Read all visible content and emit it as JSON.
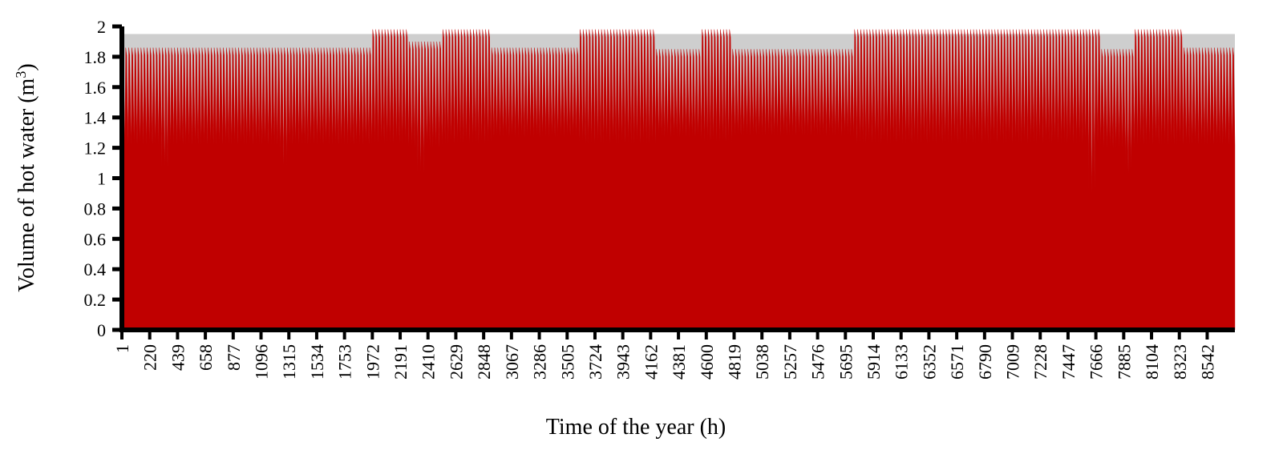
{
  "chart_data": {
    "type": "area",
    "xlabel": "Time of the year (h)",
    "ylabel": "Volume of hot water (m³)",
    "ylabel_main": "Volume of hot water (m",
    "ylabel_sup": "3",
    "ylabel_end": ")",
    "ylim": [
      0,
      2
    ],
    "xlim": [
      1,
      8760
    ],
    "yticks": [
      0,
      0.2,
      0.4,
      0.6,
      0.8,
      1,
      1.2,
      1.4,
      1.6,
      1.8,
      2
    ],
    "ytick_labels": [
      "0",
      "0.2",
      "0.4",
      "0.6",
      "0.8",
      "1",
      "1.2",
      "1.4",
      "1.6",
      "1.8",
      "2"
    ],
    "xticks": [
      1,
      220,
      439,
      658,
      877,
      1096,
      1315,
      1534,
      1753,
      1972,
      2191,
      2410,
      2629,
      2848,
      3067,
      3286,
      3505,
      3724,
      3943,
      4162,
      4381,
      4600,
      4819,
      5038,
      5257,
      5476,
      5695,
      5914,
      6133,
      6352,
      6571,
      6790,
      7009,
      7228,
      7447,
      7666,
      7885,
      8104,
      8323,
      8542
    ],
    "xtick_labels": [
      "1",
      "220",
      "439",
      "658",
      "877",
      "1096",
      "1315",
      "1534",
      "1753",
      "1972",
      "2191",
      "2410",
      "2629",
      "2848",
      "3067",
      "3286",
      "3505",
      "3724",
      "3943",
      "4162",
      "4381",
      "4600",
      "4819",
      "5038",
      "5257",
      "5476",
      "5695",
      "5914",
      "6133",
      "6352",
      "6571",
      "6790",
      "7009",
      "7228",
      "7447",
      "7666",
      "7885",
      "8104",
      "8323",
      "8542"
    ],
    "grid": false,
    "series": [
      {
        "color": "#c00000",
        "hourly_pattern": {
          "period_hours": 24,
          "daily_minimum": 1.23,
          "daily_maximum": 1.95,
          "segments": [
            {
              "start_hour": 1,
              "end_hour": 1950,
              "daily_minimum": 1.22,
              "daily_maximum": 1.86
            },
            {
              "start_hour": 1950,
              "end_hour": 2250,
              "daily_minimum": 1.23,
              "daily_maximum": 1.98
            },
            {
              "start_hour": 2250,
              "end_hour": 2500,
              "daily_minimum": 1.2,
              "daily_maximum": 1.9
            },
            {
              "start_hour": 2500,
              "end_hour": 2900,
              "daily_minimum": 1.23,
              "daily_maximum": 1.98
            },
            {
              "start_hour": 2900,
              "end_hour": 3600,
              "daily_minimum": 1.27,
              "daily_maximum": 1.86
            },
            {
              "start_hour": 3600,
              "end_hour": 4200,
              "daily_minimum": 1.23,
              "daily_maximum": 1.98
            },
            {
              "start_hour": 4200,
              "end_hour": 4550,
              "daily_minimum": 1.27,
              "daily_maximum": 1.85
            },
            {
              "start_hour": 4550,
              "end_hour": 4800,
              "daily_minimum": 1.24,
              "daily_maximum": 1.98
            },
            {
              "start_hour": 4800,
              "end_hour": 5750,
              "daily_minimum": 1.28,
              "daily_maximum": 1.85
            },
            {
              "start_hour": 5750,
              "end_hour": 7700,
              "daily_minimum": 1.23,
              "daily_maximum": 1.98
            },
            {
              "start_hour": 7700,
              "end_hour": 7950,
              "daily_minimum": 1.2,
              "daily_maximum": 1.85
            },
            {
              "start_hour": 7950,
              "end_hour": 8350,
              "daily_minimum": 1.22,
              "daily_maximum": 1.98
            },
            {
              "start_hour": 8350,
              "end_hour": 8760,
              "daily_minimum": 1.22,
              "daily_maximum": 1.86
            }
          ],
          "notable_dips": [
            {
              "hour": 330,
              "value": 1.07
            },
            {
              "hour": 1250,
              "value": 1.09
            },
            {
              "hour": 2330,
              "value": 1.03
            },
            {
              "hour": 7620,
              "value": 0.9
            },
            {
              "hour": 7910,
              "value": 1.03
            }
          ]
        },
        "envelope": {
          "upper": 1.95,
          "color": "#a6a6a6"
        }
      }
    ]
  }
}
